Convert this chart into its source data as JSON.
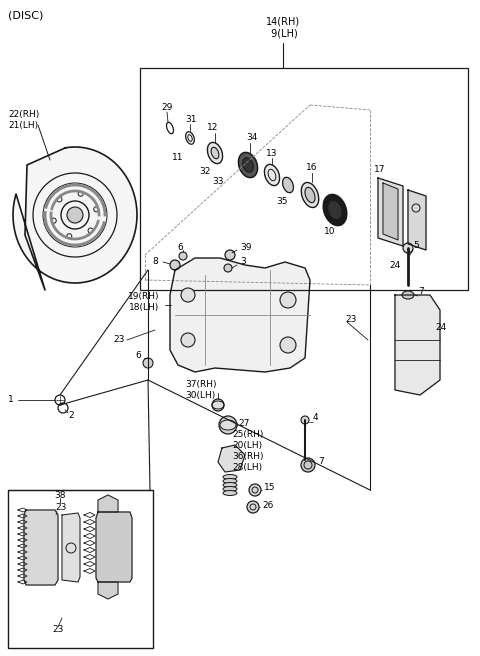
{
  "bg_color": "#ffffff",
  "lc": "#1a1a1a",
  "gc": "#888888",
  "fig_width": 4.8,
  "fig_height": 6.56,
  "dpi": 100,
  "disc_label": "(DISC)",
  "top_label": "14(RH)\n 9(LH)",
  "label_22_21": "22(RH)\n21(LH)",
  "label_19_18": "19(RH)\n18(LH)",
  "label_37_30": "37(RH)\n30(LH)",
  "label_25_20": "25(RH)\n20(LH)",
  "label_36_28": "36(RH)\n28(LH)"
}
